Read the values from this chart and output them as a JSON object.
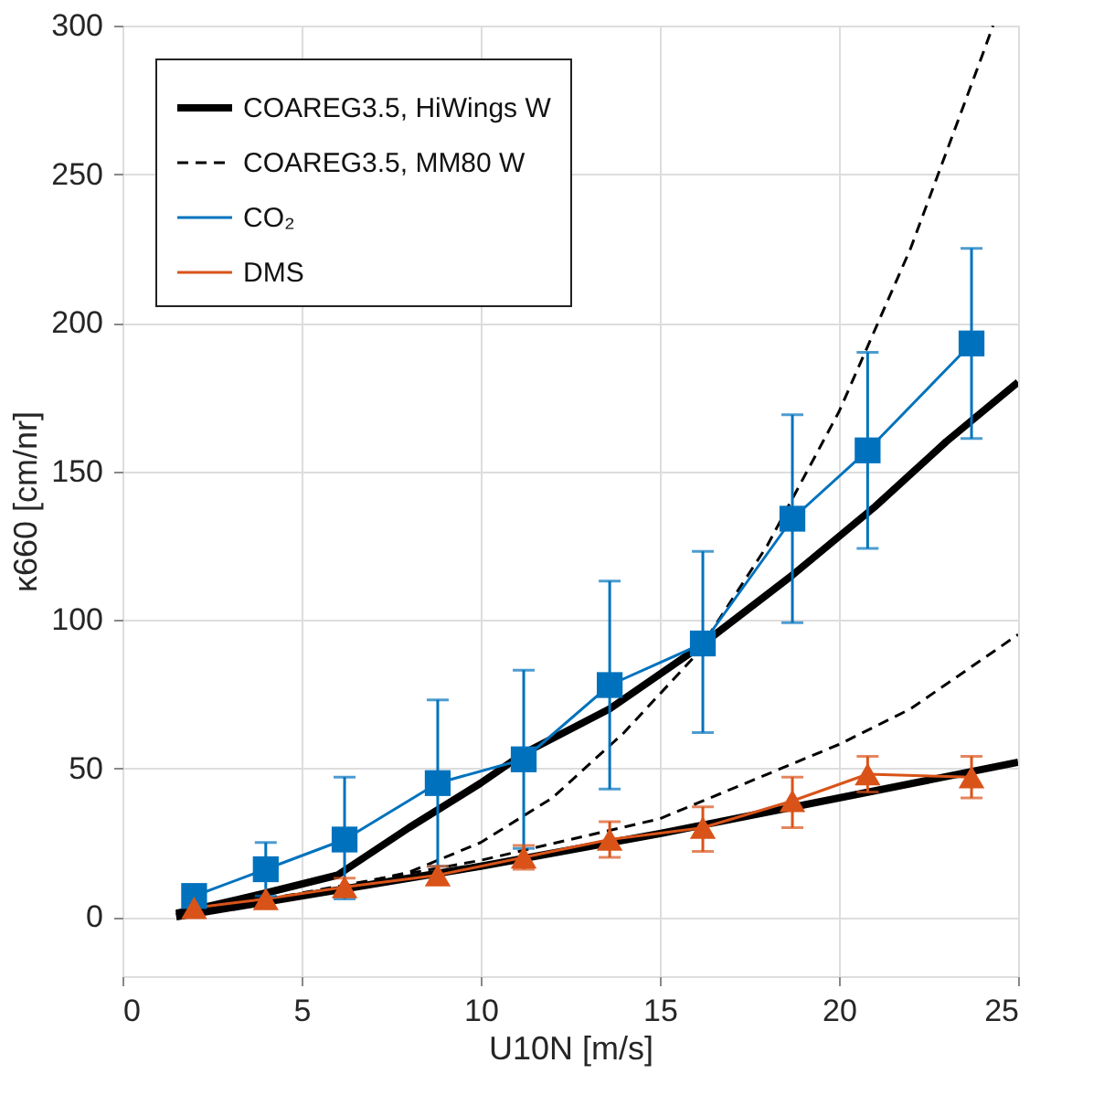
{
  "chart_data": {
    "type": "line",
    "xlabel": "U10N [m/s]",
    "ylabel": "κ660 [cm/nr]",
    "xlim": [
      0,
      25
    ],
    "ylim": [
      -20,
      300
    ],
    "xticks": [
      0,
      5,
      10,
      15,
      20,
      25
    ],
    "yticks": [
      0,
      50,
      100,
      150,
      200,
      250,
      300
    ],
    "grid": true,
    "legend": "top left",
    "series": [
      {
        "name": "COAREG3.5, HiWings W",
        "color": "#000000",
        "line_style": "solid",
        "marker": "none",
        "x": [
          1.5,
          4,
          6,
          8,
          10,
          11.2,
          13.6,
          16,
          18.7,
          21,
          23,
          25
        ],
        "values": [
          1,
          8,
          14,
          30,
          45,
          55,
          70,
          90,
          115,
          138,
          160,
          180
        ]
      },
      {
        "color": "#000000",
        "line_style": "solid",
        "marker": "none",
        "x": [
          1.5,
          5,
          10,
          15,
          20,
          25
        ],
        "values": [
          0,
          7,
          17,
          28,
          40,
          52
        ]
      },
      {
        "name": "COAREG3.5, MM80 W",
        "color": "#000000",
        "line_style": "dashed",
        "marker": "none",
        "x": [
          1.5,
          5,
          8,
          10,
          12,
          14,
          16,
          18,
          20,
          22,
          24,
          24.3
        ],
        "values": [
          2,
          7,
          15,
          25,
          40,
          62,
          88,
          125,
          170,
          225,
          290,
          300
        ]
      },
      {
        "color": "#000000",
        "line_style": "dashed",
        "marker": "none",
        "x": [
          1.5,
          5,
          10,
          15,
          20,
          22,
          25
        ],
        "values": [
          1,
          8,
          19,
          33,
          58,
          70,
          95
        ]
      },
      {
        "name": "CO₂",
        "color": "#0072bd",
        "line_style": "solid",
        "marker": "square",
        "x": [
          2,
          4,
          6.2,
          8.8,
          11.2,
          13.6,
          16.2,
          18.7,
          20.8,
          23.7
        ],
        "values": [
          7,
          16,
          26,
          45,
          53,
          78,
          92,
          134,
          157,
          193
        ],
        "errors": [
          null,
          [
            7,
            25
          ],
          [
            6,
            47
          ],
          [
            17,
            73
          ],
          [
            23,
            83
          ],
          [
            43,
            113
          ],
          [
            62,
            123
          ],
          [
            99,
            169
          ],
          [
            124,
            190
          ],
          [
            161,
            225
          ]
        ]
      },
      {
        "name": "DMS",
        "color": "#d95319",
        "line_style": "solid",
        "marker": "triangle",
        "x": [
          2,
          4,
          6.2,
          8.8,
          11.2,
          13.6,
          16.2,
          18.7,
          20.8,
          23.7
        ],
        "values": [
          3,
          6,
          10,
          14,
          20,
          26,
          30,
          39,
          48,
          47
        ],
        "errors": [
          null,
          null,
          [
            7,
            13
          ],
          [
            11,
            17
          ],
          [
            16,
            24
          ],
          [
            20,
            32
          ],
          [
            22,
            37
          ],
          [
            30,
            47
          ],
          [
            42,
            54
          ],
          [
            40,
            54
          ]
        ]
      }
    ]
  }
}
